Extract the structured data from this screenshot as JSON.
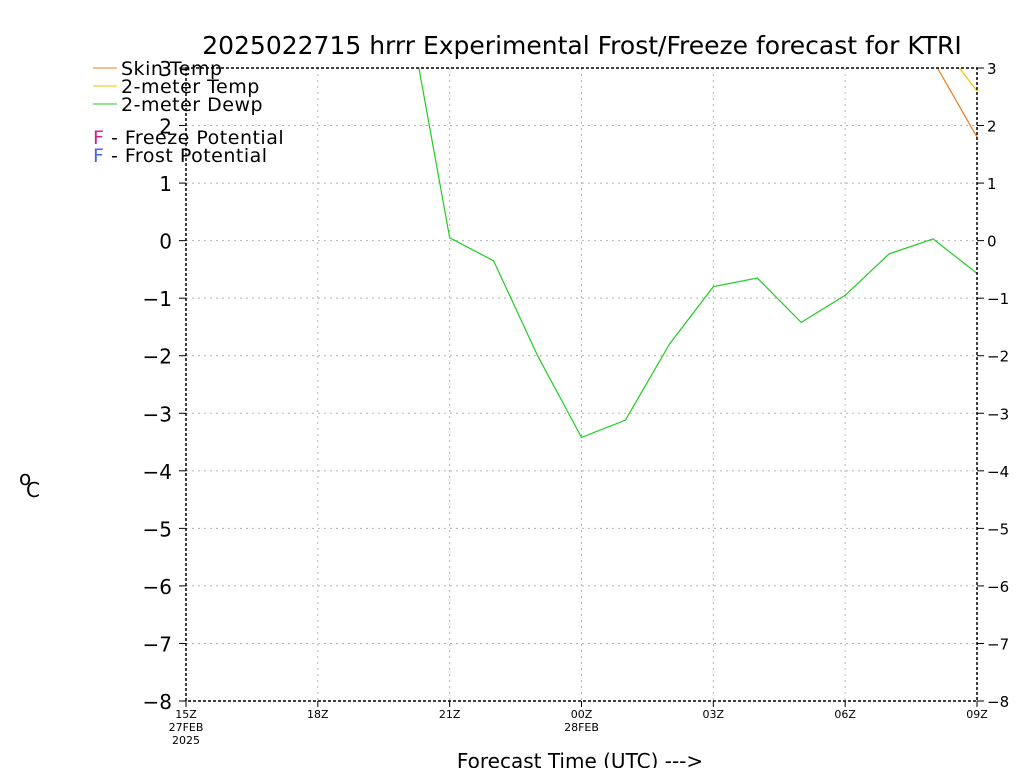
{
  "chart_data": {
    "type": "line",
    "title": "2025022715 hrrr Experimental Frost/Freeze forecast for KTRI",
    "ylabel_unit": "C",
    "ylabel_degree": "o",
    "xlabel": "Forecast Time (UTC) --->",
    "ylim": [
      -8,
      3
    ],
    "y_ticks": [
      3,
      2,
      1,
      0,
      -1,
      -2,
      -3,
      -4,
      -5,
      -6,
      -7,
      -8
    ],
    "x_hours": [
      0,
      18
    ],
    "x_ticks": [
      {
        "hour": 0,
        "label": "15Z",
        "sub1": "27FEB",
        "sub2": "2025"
      },
      {
        "hour": 3,
        "label": "18Z",
        "sub1": "",
        "sub2": ""
      },
      {
        "hour": 6,
        "label": "21Z",
        "sub1": "",
        "sub2": ""
      },
      {
        "hour": 9,
        "label": "00Z",
        "sub1": "28FEB",
        "sub2": ""
      },
      {
        "hour": 12,
        "label": "03Z",
        "sub1": "",
        "sub2": ""
      },
      {
        "hour": 15,
        "label": "06Z",
        "sub1": "",
        "sub2": ""
      },
      {
        "hour": 18,
        "label": "09Z",
        "sub1": "",
        "sub2": ""
      }
    ],
    "legend": [
      {
        "label": "Skin Temp",
        "color": "#f07820"
      },
      {
        "label": "2-meter Temp",
        "color": "#e6c800"
      },
      {
        "label": "2-meter Dewp",
        "color": "#22cc22"
      }
    ],
    "potential_legend": [
      {
        "letter": "F",
        "text": " - Freeze Potential",
        "color": "#cc2299"
      },
      {
        "letter": "F",
        "text": " - Frost Potential",
        "color": "#4466ee"
      }
    ],
    "series": [
      {
        "name": "2-meter Dewp",
        "color": "#22cc22",
        "points": [
          [
            5.3,
            3.0
          ],
          [
            6,
            0.05
          ],
          [
            7,
            -0.35
          ],
          [
            8,
            -2.0
          ],
          [
            9,
            -3.42
          ],
          [
            10,
            -3.12
          ],
          [
            11,
            -1.8
          ],
          [
            12,
            -0.8
          ],
          [
            13,
            -0.65
          ],
          [
            14,
            -1.42
          ],
          [
            15,
            -0.95
          ],
          [
            16,
            -0.23
          ],
          [
            17,
            0.03
          ],
          [
            18,
            -0.57
          ]
        ]
      },
      {
        "name": "Skin Temp",
        "color": "#f07820",
        "points": [
          [
            17.1,
            3.0
          ],
          [
            18,
            1.8
          ]
        ]
      },
      {
        "name": "2-meter Temp",
        "color": "#e6c800",
        "points": [
          [
            17.6,
            3.0
          ],
          [
            18,
            2.6
          ]
        ]
      }
    ]
  }
}
